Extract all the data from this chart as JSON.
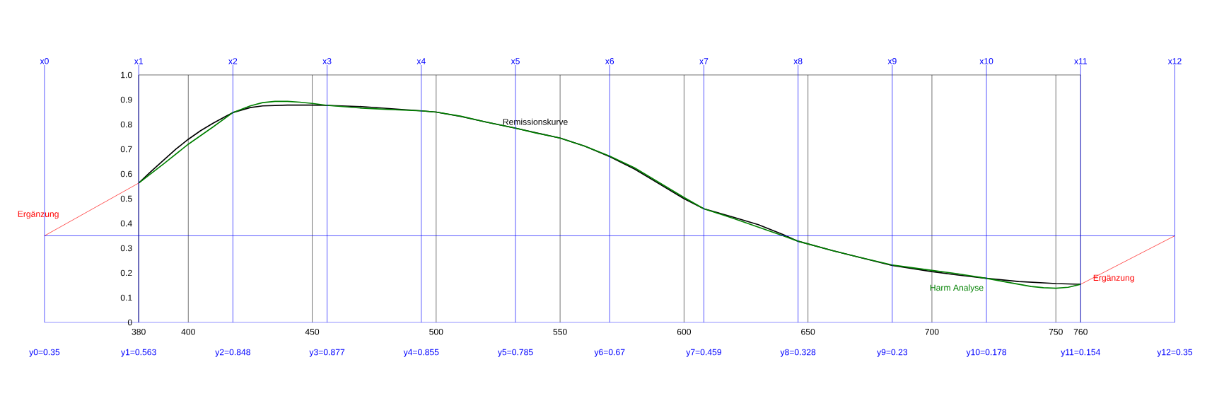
{
  "chart_data": {
    "type": "line",
    "xlim": [
      342,
      798
    ],
    "ylim": [
      0,
      1.0
    ],
    "xticks": [
      380,
      400,
      450,
      500,
      550,
      600,
      650,
      700,
      750,
      760
    ],
    "yticks": [
      0,
      0.1,
      0.2,
      0.3,
      0.4,
      0.5,
      0.6,
      0.7,
      0.8,
      0.9,
      {
        "value": 1.0,
        "label": "1.0"
      }
    ],
    "grid": "x",
    "series": [
      {
        "name": "Remissionskurve",
        "color": "#000000",
        "x": [
          380,
          385,
          390,
          395,
          400,
          405,
          410,
          415,
          418,
          425,
          430,
          440,
          450,
          456,
          470,
          480,
          494,
          500,
          510,
          520,
          532,
          540,
          550,
          560,
          570,
          580,
          590,
          600,
          608,
          620,
          630,
          640,
          646,
          660,
          670,
          684,
          700,
          710,
          722,
          735,
          750,
          760
        ],
        "values": [
          0.563,
          0.61,
          0.655,
          0.7,
          0.74,
          0.775,
          0.805,
          0.832,
          0.848,
          0.868,
          0.875,
          0.878,
          0.878,
          0.877,
          0.872,
          0.865,
          0.855,
          0.85,
          0.832,
          0.81,
          0.785,
          0.767,
          0.745,
          0.712,
          0.67,
          0.62,
          0.56,
          0.5,
          0.459,
          0.425,
          0.395,
          0.355,
          0.328,
          0.29,
          0.265,
          0.23,
          0.205,
          0.192,
          0.178,
          0.165,
          0.157,
          0.154
        ]
      },
      {
        "name": "Harm Analyse",
        "color": "#008000",
        "x": [
          380,
          390,
          400,
          410,
          418,
          425,
          430,
          435,
          440,
          445,
          450,
          456,
          470,
          480,
          494,
          500,
          510,
          520,
          532,
          540,
          550,
          560,
          570,
          580,
          590,
          600,
          608,
          620,
          630,
          640,
          646,
          660,
          670,
          684,
          700,
          710,
          722,
          730,
          740,
          745,
          750,
          755,
          760
        ],
        "values": [
          0.563,
          0.64,
          0.72,
          0.79,
          0.848,
          0.875,
          0.888,
          0.893,
          0.893,
          0.89,
          0.885,
          0.877,
          0.866,
          0.861,
          0.855,
          0.85,
          0.833,
          0.81,
          0.785,
          0.766,
          0.745,
          0.712,
          0.672,
          0.625,
          0.565,
          0.505,
          0.459,
          0.42,
          0.385,
          0.35,
          0.328,
          0.29,
          0.265,
          0.232,
          0.21,
          0.197,
          0.178,
          0.163,
          0.145,
          0.14,
          0.138,
          0.142,
          0.154
        ]
      },
      {
        "name": "Ergänzung",
        "color": "#ff0000",
        "x": [
          342,
          380
        ],
        "values": [
          0.35,
          0.563
        ]
      },
      {
        "name": "Ergänzung",
        "color": "#ff0000",
        "x": [
          760,
          798
        ],
        "values": [
          0.154,
          0.35
        ]
      }
    ],
    "ref_lines": [
      {
        "axis": "x",
        "value": 342,
        "label": "x0",
        "color": "#0000ff"
      },
      {
        "axis": "x",
        "value": 380,
        "label": "x1",
        "color": "#0000ff"
      },
      {
        "axis": "x",
        "value": 418,
        "label": "x2",
        "color": "#0000ff"
      },
      {
        "axis": "x",
        "value": 456,
        "label": "x3",
        "color": "#0000ff"
      },
      {
        "axis": "x",
        "value": 494,
        "label": "x4",
        "color": "#0000ff"
      },
      {
        "axis": "x",
        "value": 532,
        "label": "x5",
        "color": "#0000ff"
      },
      {
        "axis": "x",
        "value": 570,
        "label": "x6",
        "color": "#0000ff"
      },
      {
        "axis": "x",
        "value": 608,
        "label": "x7",
        "color": "#0000ff"
      },
      {
        "axis": "x",
        "value": 646,
        "label": "x8",
        "color": "#0000ff"
      },
      {
        "axis": "x",
        "value": 684,
        "label": "x9",
        "color": "#0000ff"
      },
      {
        "axis": "x",
        "value": 722,
        "label": "x10",
        "color": "#0000ff"
      },
      {
        "axis": "x",
        "value": 760,
        "label": "x11",
        "color": "#0000ff"
      },
      {
        "axis": "x",
        "value": 798,
        "label": "x12",
        "color": "#0000ff"
      },
      {
        "axis": "y",
        "value": 0.35,
        "color": "#0000ff"
      }
    ],
    "annotations": [
      "y0=0.35",
      "y1=0.563",
      "y2=0.848",
      "y3=0.877",
      "y4=0.855",
      "y5=0.785",
      "y6=0.67",
      "y7=0.459",
      "y8=0.328",
      "y9=0.23",
      "y10=0.178",
      "y11=0.154",
      "y12=0.35"
    ]
  }
}
